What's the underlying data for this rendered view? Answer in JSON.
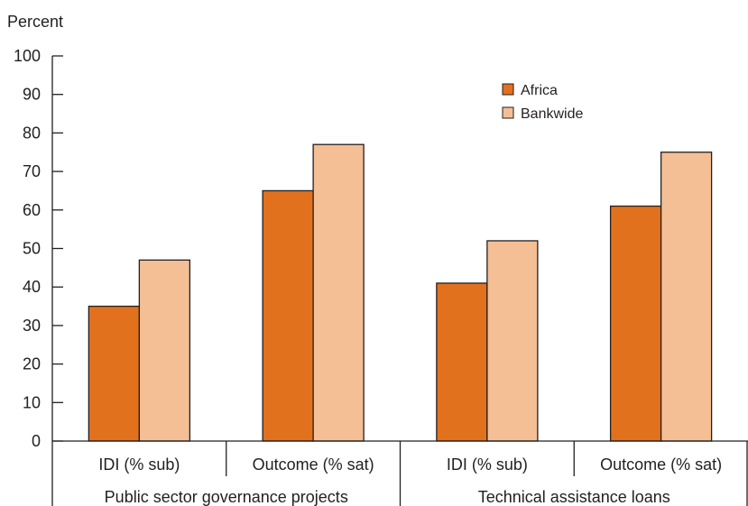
{
  "chart_data": {
    "type": "bar",
    "ylabel": "Percent",
    "ylim": [
      0,
      100
    ],
    "yticks": [
      0,
      10,
      20,
      30,
      40,
      50,
      60,
      70,
      80,
      90,
      100
    ],
    "categories": [
      "IDI (% sub)",
      "Outcome (% sat)",
      "IDI (% sub)",
      "Outcome (% sat)"
    ],
    "groups": [
      {
        "label": "Public sector governance projects",
        "categories": [
          0,
          1
        ]
      },
      {
        "label": "Technical assistance loans",
        "categories": [
          2,
          3
        ]
      }
    ],
    "series": [
      {
        "name": "Africa",
        "color": "#e2711d",
        "values": [
          35,
          65,
          41,
          61
        ]
      },
      {
        "name": "Bankwide",
        "color": "#f4bf95",
        "values": [
          47,
          77,
          52,
          75
        ]
      }
    ],
    "legend_position": "top-right",
    "grid": false
  }
}
